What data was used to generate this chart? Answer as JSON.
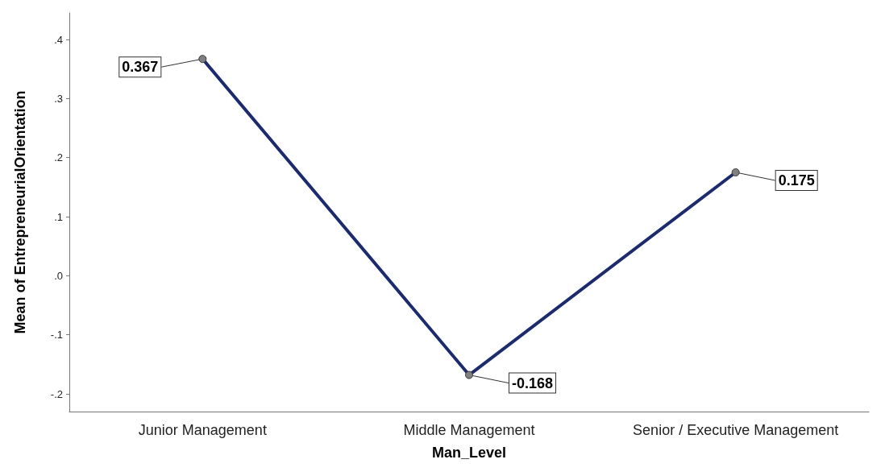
{
  "chart_data": {
    "type": "line",
    "xlabel": "Man_Level",
    "ylabel": "Mean of EntrepreneurialOrientation",
    "categories": [
      "Junior Management",
      "Middle Management",
      "Senior / Executive Management"
    ],
    "series": [
      {
        "color": "#1b2a74",
        "values": [
          0.367,
          -0.168,
          0.175
        ]
      }
    ],
    "ylim": [
      -0.23,
      0.445
    ],
    "yticks": [
      {
        "value": -0.2,
        "label": "-.2"
      },
      {
        "value": -0.1,
        "label": "-.1"
      },
      {
        "value": 0,
        "label": ".0"
      },
      {
        "value": 0.1,
        "label": ".1"
      },
      {
        "value": 0.2,
        "label": ".2"
      },
      {
        "value": 0.3,
        "label": ".3"
      },
      {
        "value": 0.4,
        "label": ".4"
      }
    ],
    "data_labels": true,
    "marker": "circle",
    "line_style": "solid"
  }
}
